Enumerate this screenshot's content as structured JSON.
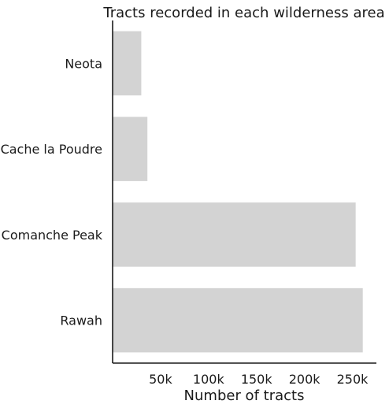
{
  "chart_data": {
    "type": "bar",
    "orientation": "horizontal",
    "title": "Tracts recorded in each wilderness area",
    "xlabel": "Number of tracts",
    "ylabel": "",
    "categories": [
      "Neota",
      "Cache la Poudre",
      "Comanche Peak",
      "Rawah"
    ],
    "values": [
      29884,
      36293,
      253364,
      260796
    ],
    "xlim": [
      0,
      275000
    ],
    "xticks": [
      50000,
      100000,
      150000,
      200000,
      250000
    ],
    "xtick_labels": [
      "50k",
      "100k",
      "150k",
      "200k",
      "250k"
    ],
    "grid": false,
    "legend": "none",
    "colors": {
      "bar": "#d3d3d3",
      "axis": "#1a1a1a"
    }
  }
}
